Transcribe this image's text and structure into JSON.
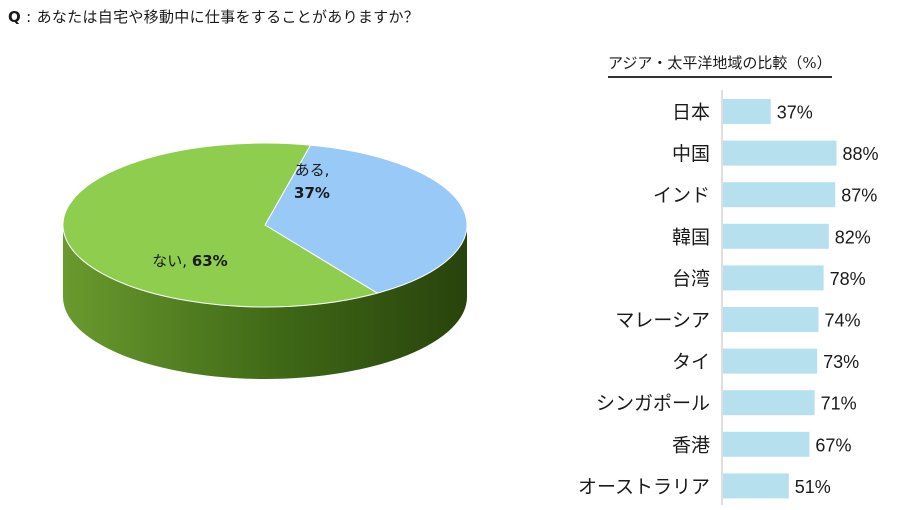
{
  "question": {
    "prefix": "Q",
    "text": "あなたは自宅や移動中に仕事をすることがありますか？"
  },
  "chart_data": [
    {
      "type": "pie",
      "slices": [
        {
          "label": "ある",
          "value": 37,
          "value_label": "37%",
          "color": "#99c9f7"
        },
        {
          "label": "ない",
          "value": 63,
          "value_label": "63%",
          "color": "#8fcd4f"
        }
      ]
    },
    {
      "type": "bar",
      "orientation": "horizontal",
      "title": "アジア・太平洋地域の比較（%）",
      "categories": [
        "日本",
        "中国",
        "インド",
        "韓国",
        "台湾",
        "マレーシア",
        "タイ",
        "シンガポール",
        "香港",
        "オーストラリア"
      ],
      "values": [
        37,
        88,
        87,
        82,
        78,
        74,
        73,
        71,
        67,
        51
      ],
      "value_labels": [
        "37%",
        "88%",
        "87%",
        "82%",
        "78%",
        "74%",
        "73%",
        "71%",
        "67%",
        "51%"
      ],
      "bar_color": "#b7e0ee",
      "xlim": [
        0,
        100
      ]
    }
  ]
}
